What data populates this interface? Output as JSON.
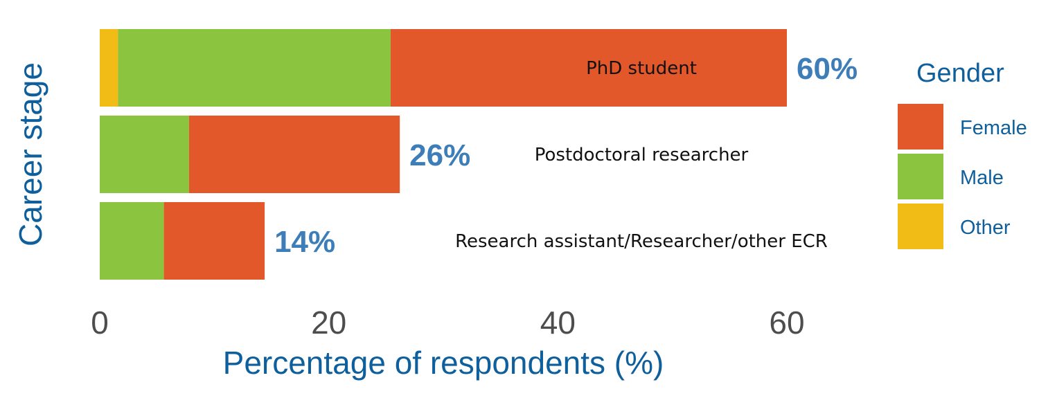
{
  "chart_data": {
    "type": "bar",
    "orientation": "horizontal",
    "stacked": true,
    "xlabel": "Percentage of respondents (%)",
    "ylabel": "Career stage",
    "xlim": [
      0,
      60
    ],
    "xticks": [
      "0",
      "20",
      "40",
      "60"
    ],
    "grid": false,
    "categories": [
      "PhD student",
      "Postdoctoral researcher",
      "Research assistant/Researcher/other ECR"
    ],
    "totals_labels": [
      "60%",
      "26%",
      "14%"
    ],
    "series": [
      {
        "name": "Other",
        "color": "#f1bc16",
        "values": [
          1.6,
          0,
          0
        ]
      },
      {
        "name": "Male",
        "color": "#8bc43f",
        "values": [
          23.8,
          7.8,
          5.6
        ]
      },
      {
        "name": "Female",
        "color": "#e3582a",
        "values": [
          34.6,
          18.4,
          8.8
        ]
      }
    ],
    "legend": {
      "title": "Gender",
      "position": "right",
      "items": [
        "Female",
        "Male",
        "Other"
      ]
    }
  }
}
